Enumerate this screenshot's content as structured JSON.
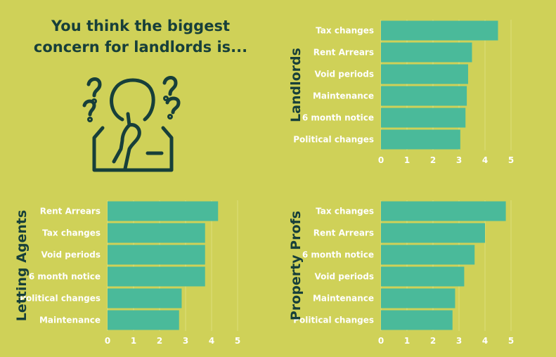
{
  "headline": {
    "line1": "You think the biggest",
    "line2": "concern for landlords is..."
  },
  "icon": "person-thinking-question-marks-icon",
  "colors": {
    "background": "#cfd158",
    "bar": "#4aba9a",
    "title": "#173f3a",
    "label": "#ffffff"
  },
  "chart_data": [
    {
      "type": "bar",
      "orientation": "horizontal",
      "ylabel": "Landlords",
      "categories": [
        "Tax changes",
        "Rent Arrears",
        "Void periods",
        "Maintenance",
        "6 month notice",
        "Political changes"
      ],
      "values": [
        4.5,
        3.5,
        3.35,
        3.3,
        3.25,
        3.05
      ],
      "xlim": [
        0,
        5
      ],
      "ticks": [
        "0",
        "1",
        "2",
        "3",
        "4",
        "5"
      ],
      "grid": true
    },
    {
      "type": "bar",
      "orientation": "horizontal",
      "ylabel": "Letting Agents",
      "categories": [
        "Rent Arrears",
        "Tax changes",
        "Void periods",
        "6 month notice",
        "Political changes",
        "Maintenance"
      ],
      "values": [
        4.25,
        3.75,
        3.75,
        3.75,
        2.85,
        2.75
      ],
      "xlim": [
        0,
        5
      ],
      "ticks": [
        "0",
        "1",
        "2",
        "3",
        "4",
        "5"
      ],
      "grid": true
    },
    {
      "type": "bar",
      "orientation": "horizontal",
      "ylabel": "Property Profs",
      "categories": [
        "Tax changes",
        "Rent Arrears",
        "6 month notice",
        "Void periods",
        "Maintenance",
        "Political changes"
      ],
      "values": [
        4.8,
        4.0,
        3.6,
        3.2,
        2.85,
        2.75
      ],
      "xlim": [
        0,
        5
      ],
      "ticks": [
        "0",
        "1",
        "2",
        "3",
        "4",
        "5"
      ],
      "grid": true
    }
  ]
}
